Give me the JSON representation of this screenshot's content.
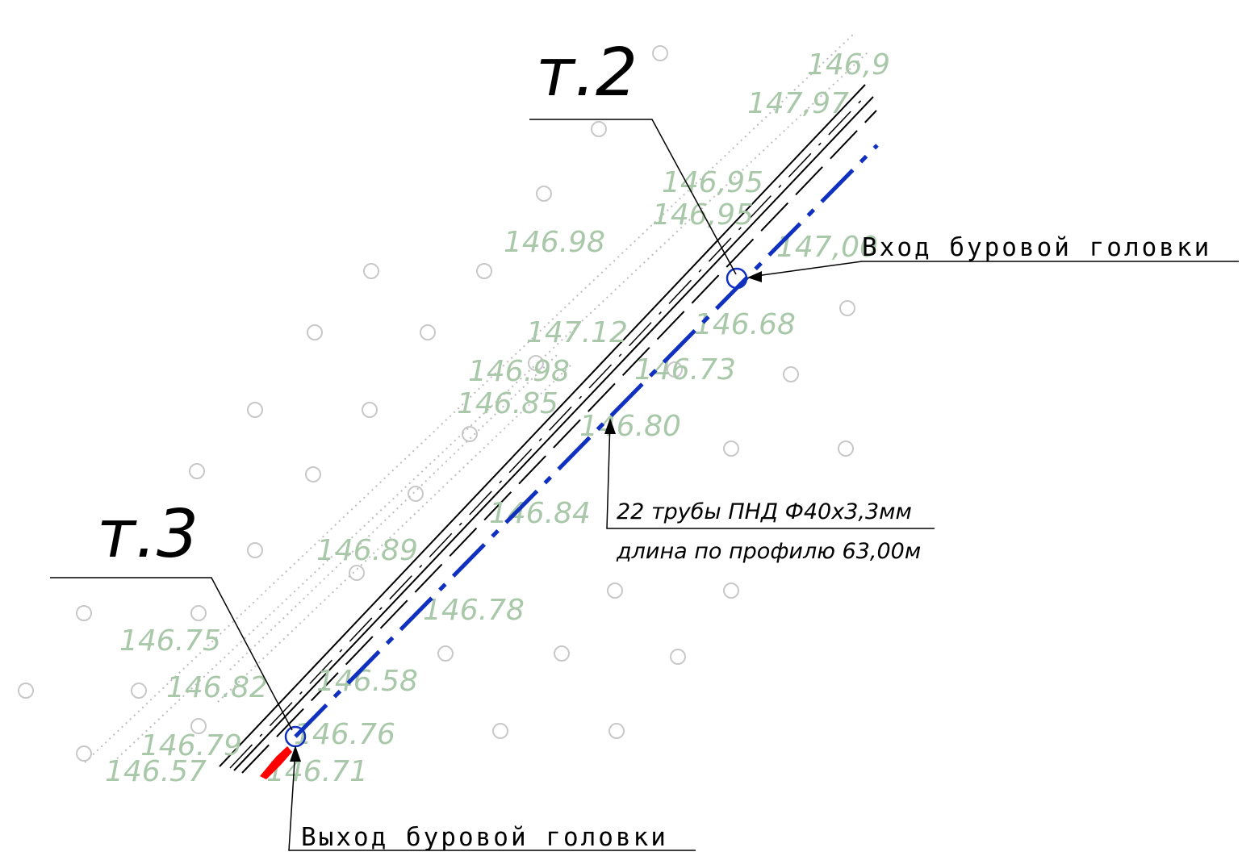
{
  "points": {
    "t2": "т.2",
    "t3": "т.3"
  },
  "callouts": {
    "entry": "Вход буровой головки",
    "exit": "Выход буровой головки"
  },
  "pipe_note": {
    "line1": "22 трубы ПНД Ф40х3,3мм",
    "line2": "длина по профилю 63,00м"
  },
  "elevations": [
    "147,97",
    "146,95",
    "146,95",
    "146.98",
    "147,00",
    "146.68",
    "147.12",
    "146.98",
    "146.73",
    "146.85",
    "146.80",
    "146.84",
    "146.89",
    "146.78",
    "146.75",
    "146.82",
    "146.58",
    "146.79",
    "146.76",
    "146.57",
    "146.71",
    "146,9"
  ],
  "colors": {
    "pipe": "#1030c0",
    "elevation_text": "#a9c8a9",
    "exit_marker": "#ff0000",
    "lines": "#000000"
  }
}
